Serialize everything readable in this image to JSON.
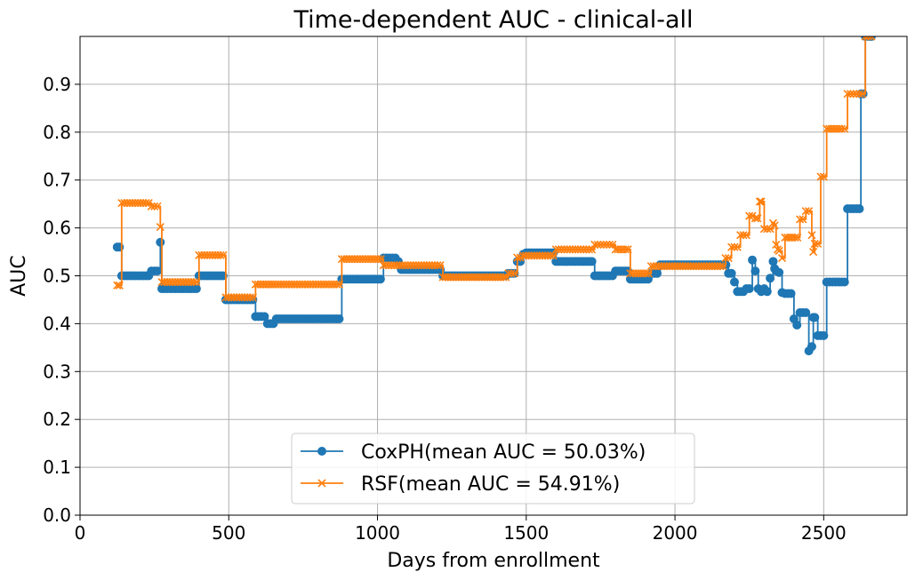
{
  "chart_data": {
    "type": "line",
    "title": "Time-dependent AUC - clinical-all",
    "xlabel": "Days from enrollment",
    "ylabel": "AUC",
    "xlim": [
      0,
      2780
    ],
    "ylim": [
      0,
      1.0
    ],
    "xticks": [
      0,
      500,
      1000,
      1500,
      2000,
      2500
    ],
    "xtick_labels": [
      "0",
      "500",
      "1000",
      "1500",
      "2000",
      "2500"
    ],
    "yticks": [
      0.0,
      0.1,
      0.2,
      0.3,
      0.4,
      0.5,
      0.6,
      0.7,
      0.8,
      0.9
    ],
    "ytick_labels": [
      "0.0",
      "0.1",
      "0.2",
      "0.3",
      "0.4",
      "0.5",
      "0.6",
      "0.7",
      "0.8",
      "0.9"
    ],
    "grid": true,
    "legend_position": "bottom-center",
    "series": [
      {
        "name": "CoxPH(mean AUC = 50.03%)",
        "color": "#1f77b4",
        "marker": "circle",
        "x": [
          125,
          140,
          240,
          270,
          275,
          330,
          400,
          490,
          590,
          630,
          660,
          880,
          1000,
          1020,
          1030,
          1040,
          1050,
          1060,
          1070,
          1080,
          1220,
          1440,
          1470,
          1490,
          1500,
          1600,
          1730,
          1780,
          1800,
          1850,
          1900,
          1920,
          1950,
          2180,
          2190,
          2200,
          2210,
          2220,
          2240,
          2260,
          2270,
          2280,
          2290,
          2300,
          2310,
          2320,
          2330,
          2335,
          2340,
          2350,
          2360,
          2370,
          2380,
          2390,
          2400,
          2410,
          2420,
          2430,
          2440,
          2450,
          2460,
          2465,
          2470,
          2480,
          2490,
          2500,
          2510,
          2520,
          2560,
          2580,
          2600,
          2620,
          2625,
          2640,
          2650,
          2660
        ],
        "y": [
          0.56,
          0.5,
          0.51,
          0.57,
          0.473,
          0.473,
          0.5,
          0.45,
          0.415,
          0.4,
          0.41,
          0.493,
          0.493,
          0.537,
          0.537,
          0.537,
          0.537,
          0.537,
          0.53,
          0.513,
          0.5,
          0.505,
          0.53,
          0.545,
          0.548,
          0.53,
          0.5,
          0.5,
          0.51,
          0.493,
          0.493,
          0.505,
          0.523,
          0.505,
          0.505,
          0.487,
          0.467,
          0.467,
          0.473,
          0.533,
          0.51,
          0.473,
          0.467,
          0.473,
          0.467,
          0.495,
          0.53,
          0.515,
          0.51,
          0.507,
          0.465,
          0.463,
          0.463,
          0.463,
          0.41,
          0.397,
          0.423,
          0.423,
          0.423,
          0.343,
          0.352,
          0.413,
          0.413,
          0.375,
          0.375,
          0.375,
          0.487,
          0.487,
          0.487,
          0.64,
          0.64,
          0.64,
          0.88,
          1.0,
          1.0,
          1.0
        ]
      },
      {
        "name": "RSF(mean AUC = 54.91%)",
        "color": "#ff7f0e",
        "marker": "x",
        "x": [
          125,
          140,
          240,
          270,
          275,
          400,
          490,
          590,
          650,
          880,
          1020,
          1220,
          1440,
          1470,
          1490,
          1600,
          1730,
          1760,
          1800,
          1850,
          1920,
          2170,
          2190,
          2220,
          2250,
          2270,
          2285,
          2290,
          2300,
          2310,
          2320,
          2330,
          2335,
          2340,
          2345,
          2350,
          2360,
          2370,
          2420,
          2440,
          2460,
          2465,
          2470,
          2490,
          2510,
          2560,
          2580,
          2620,
          2640,
          2660
        ],
        "y": [
          0.48,
          0.652,
          0.645,
          0.602,
          0.487,
          0.543,
          0.455,
          0.482,
          0.482,
          0.535,
          0.522,
          0.497,
          0.505,
          0.538,
          0.542,
          0.555,
          0.565,
          0.565,
          0.555,
          0.505,
          0.52,
          0.537,
          0.56,
          0.585,
          0.625,
          0.62,
          0.655,
          0.655,
          0.598,
          0.598,
          0.598,
          0.61,
          0.605,
          0.565,
          0.555,
          0.552,
          0.537,
          0.58,
          0.618,
          0.635,
          0.585,
          0.55,
          0.567,
          0.707,
          0.807,
          0.807,
          0.88,
          0.88,
          1.0,
          1.0
        ]
      }
    ]
  }
}
